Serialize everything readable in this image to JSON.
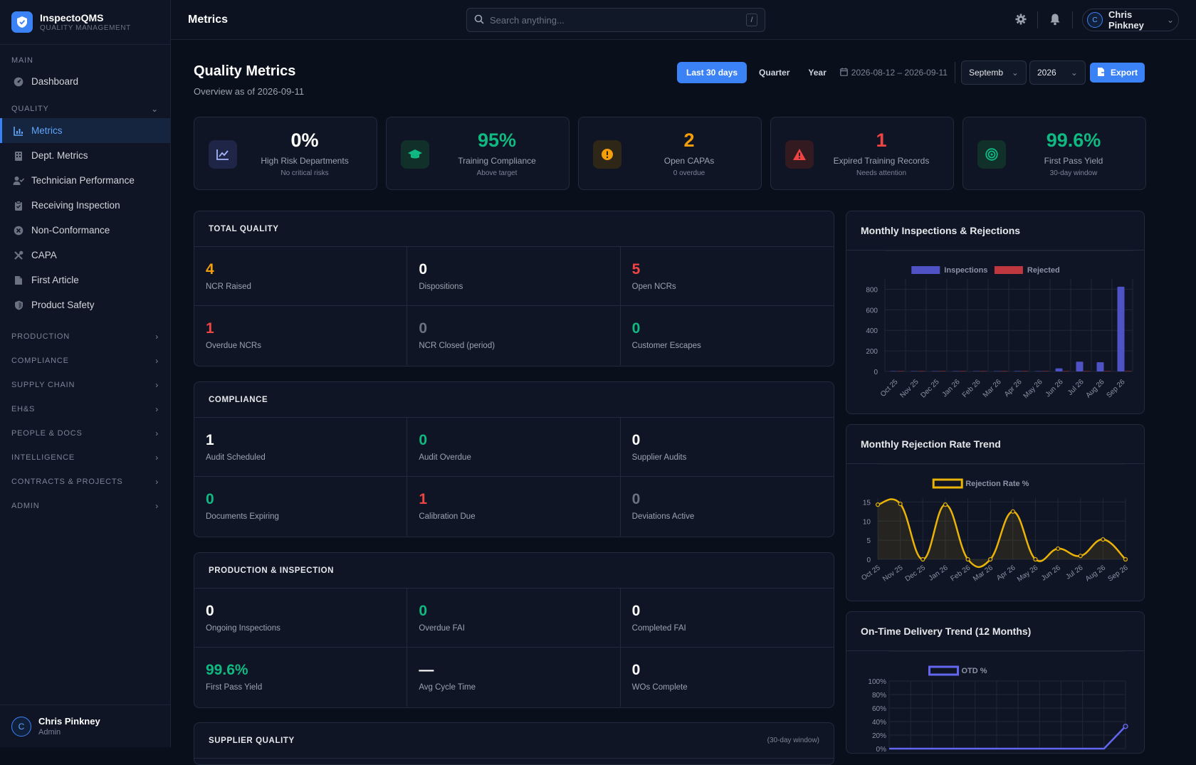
{
  "app": {
    "name": "InspectoQMS",
    "subtitle": "QUALITY MANAGEMENT"
  },
  "sidebar": {
    "main_label": "MAIN",
    "dashboard": "Dashboard",
    "quality_label": "QUALITY",
    "quality_items": [
      {
        "label": "Metrics",
        "icon": "bar-chart-icon",
        "active": true
      },
      {
        "label": "Dept. Metrics",
        "icon": "building-icon"
      },
      {
        "label": "Technician Performance",
        "icon": "user-check-icon"
      },
      {
        "label": "Receiving Inspection",
        "icon": "clipboard-icon"
      },
      {
        "label": "Non-Conformance",
        "icon": "x-circle-icon"
      },
      {
        "label": "CAPA",
        "icon": "tools-icon"
      },
      {
        "label": "First Article",
        "icon": "file-icon"
      },
      {
        "label": "Product Safety",
        "icon": "shield-icon"
      }
    ],
    "groups": [
      "PRODUCTION",
      "COMPLIANCE",
      "SUPPLY CHAIN",
      "EH&S",
      "PEOPLE & DOCS",
      "INTELLIGENCE",
      "CONTRACTS & PROJECTS",
      "ADMIN"
    ],
    "user": {
      "initial": "C",
      "name": "Chris Pinkney",
      "role": "Admin"
    }
  },
  "topbar": {
    "page": "Metrics",
    "search_placeholder": "Search anything...",
    "shortcut": "/",
    "user_initial": "C",
    "user_name": "Chris Pinkney"
  },
  "header": {
    "title": "Quality Metrics",
    "subtitle": "Overview as of 2026-09-11",
    "ranges": [
      "Last 30 days",
      "Quarter",
      "Year"
    ],
    "date_range": "2026-08-12 – 2026-09-11",
    "month": "Septemb",
    "year": "2026",
    "export": "Export"
  },
  "kpis": [
    {
      "value": "0%",
      "label": "High Risk Departments",
      "sub": "No critical risks",
      "color": "#ffffff",
      "icon": "trend-icon",
      "icon_color": "#a5b4fc",
      "icon_bg": "#1e2547"
    },
    {
      "value": "95%",
      "label": "Training Compliance",
      "sub": "Above target",
      "color": "#10b981",
      "icon": "graduation-cap-icon",
      "icon_color": "#10b981",
      "icon_bg": "#11302a"
    },
    {
      "value": "2",
      "label": "Open CAPAs",
      "sub": "0 overdue",
      "color": "#f59e0b",
      "icon": "alert-circle-icon",
      "icon_color": "#f59e0b",
      "icon_bg": "#2e2616"
    },
    {
      "value": "1",
      "label": "Expired Training Records",
      "sub": "Needs attention",
      "color": "#ef4444",
      "icon": "warning-triangle-icon",
      "icon_color": "#ef4444",
      "icon_bg": "#321a20"
    },
    {
      "value": "99.6%",
      "label": "First Pass Yield",
      "sub": "30-day window",
      "color": "#10b981",
      "icon": "target-icon",
      "icon_color": "#10b981",
      "icon_bg": "#11302a"
    }
  ],
  "sections": [
    {
      "title": "TOTAL QUALITY",
      "cells": [
        {
          "value": "4",
          "label": "NCR Raised",
          "color": "#f59e0b"
        },
        {
          "value": "0",
          "label": "Dispositions",
          "color": "#ffffff"
        },
        {
          "value": "5",
          "label": "Open NCRs",
          "color": "#ef4444"
        },
        {
          "value": "1",
          "label": "Overdue NCRs",
          "color": "#ef4444"
        },
        {
          "value": "0",
          "label": "NCR Closed (period)",
          "color": "#6b7280"
        },
        {
          "value": "0",
          "label": "Customer Escapes",
          "color": "#10b981"
        }
      ]
    },
    {
      "title": "COMPLIANCE",
      "cells": [
        {
          "value": "1",
          "label": "Audit Scheduled",
          "color": "#ffffff"
        },
        {
          "value": "0",
          "label": "Audit Overdue",
          "color": "#10b981"
        },
        {
          "value": "0",
          "label": "Supplier Audits",
          "color": "#ffffff"
        },
        {
          "value": "0",
          "label": "Documents Expiring",
          "color": "#10b981"
        },
        {
          "value": "1",
          "label": "Calibration Due",
          "color": "#ef4444"
        },
        {
          "value": "0",
          "label": "Deviations Active",
          "color": "#6b7280"
        }
      ]
    },
    {
      "title": "PRODUCTION & INSPECTION",
      "cells": [
        {
          "value": "0",
          "label": "Ongoing Inspections",
          "color": "#ffffff"
        },
        {
          "value": "0",
          "label": "Overdue FAI",
          "color": "#10b981"
        },
        {
          "value": "0",
          "label": "Completed FAI",
          "color": "#ffffff"
        },
        {
          "value": "99.6%",
          "label": "First Pass Yield",
          "color": "#10b981"
        },
        {
          "value": "—",
          "label": "Avg Cycle Time",
          "color": "#ffffff"
        },
        {
          "value": "0",
          "label": "WOs Complete",
          "color": "#ffffff"
        }
      ]
    }
  ],
  "supplier": {
    "title": "SUPPLIER QUALITY",
    "hint": "(30-day window)"
  },
  "chart_data": [
    {
      "type": "bar",
      "title": "Monthly Inspections & Rejections",
      "categories": [
        "Oct 25",
        "Nov 25",
        "Dec 25",
        "Jan 26",
        "Feb 26",
        "Mar 26",
        "Apr 26",
        "May 26",
        "Jun 26",
        "Jul 26",
        "Aug 26",
        "Sep 26"
      ],
      "series": [
        {
          "name": "Inspections",
          "color": "#4f52c4",
          "values": [
            2,
            2,
            3,
            2,
            3,
            2,
            4,
            1,
            30,
            95,
            90,
            825
          ]
        },
        {
          "name": "Rejected",
          "color": "#c0383f",
          "values": [
            0,
            0,
            0,
            0,
            0,
            0,
            0,
            0,
            1,
            1,
            1,
            3
          ]
        }
      ],
      "yticks": [
        0,
        200,
        400,
        600,
        800
      ],
      "ylim": [
        0,
        900
      ]
    },
    {
      "type": "line",
      "title": "Monthly Rejection Rate Trend",
      "categories": [
        "Oct 25",
        "Nov 25",
        "Dec 25",
        "Jan 26",
        "Feb 26",
        "Mar 26",
        "Apr 26",
        "May 26",
        "Jun 26",
        "Jul 26",
        "Aug 26",
        "Sep 26"
      ],
      "series": [
        {
          "name": "Rejection Rate %",
          "color": "#eab308",
          "values": [
            14.3,
            14.5,
            0,
            14.3,
            0,
            0,
            12.5,
            0,
            2.8,
            0.9,
            5.2,
            0
          ]
        }
      ],
      "yticks": [
        0,
        5,
        10,
        15
      ],
      "ylim": [
        0,
        16
      ]
    },
    {
      "type": "line",
      "title": "On-Time Delivery Trend (12 Months)",
      "series": [
        {
          "name": "OTD %",
          "color": "#6366f1",
          "values": [
            0,
            0,
            0,
            0,
            0,
            0,
            0,
            0,
            0,
            0,
            0,
            33
          ]
        }
      ],
      "yticks": [
        "100%",
        "80%",
        "60%",
        "40%",
        "20%",
        "0%"
      ],
      "ylim": [
        0,
        100
      ]
    }
  ]
}
